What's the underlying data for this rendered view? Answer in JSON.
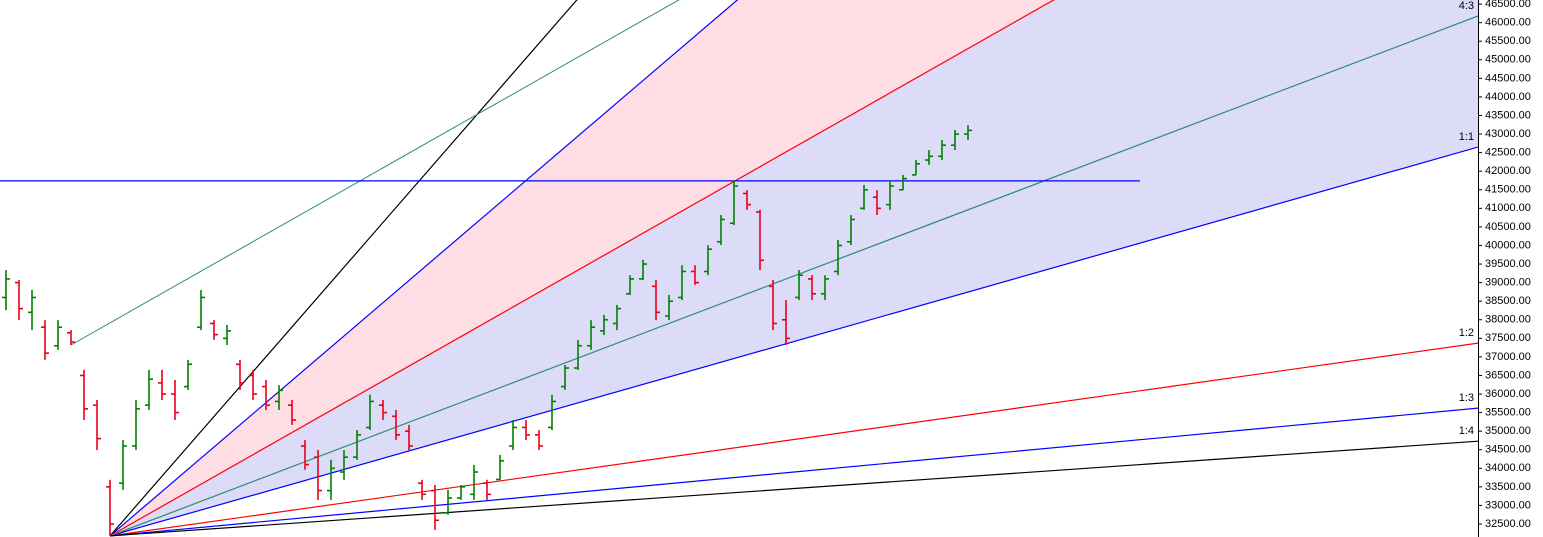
{
  "chart_data": {
    "type": "ohlc",
    "up_color": "#008000",
    "down_color": "#e8001c",
    "open": [
      38600,
      39000,
      38200,
      37800,
      37300,
      37650,
      36500,
      35700,
      33500,
      33600,
      34600,
      35700,
      36300,
      36000,
      36200,
      37800,
      37900,
      37500,
      36800,
      36500,
      36200,
      35800,
      35700,
      34600,
      34300,
      33400,
      33900,
      34300,
      35100,
      35700,
      35400,
      35000,
      33600,
      33400,
      32800,
      33200,
      33300,
      33600,
      33700,
      34600,
      35100,
      34900,
      35100,
      36200,
      36700,
      37300,
      37700,
      37900,
      38700,
      39100,
      38900,
      38100,
      38600,
      39300,
      39300,
      40100,
      40600,
      41400,
      40900,
      38900,
      38000,
      38600,
      39100,
      38700,
      39300,
      40100,
      41000,
      41300,
      41100,
      41500,
      41900,
      42300,
      42400,
      42700,
      43000
    ],
    "high": [
      39340,
      39070,
      38800,
      37990,
      37990,
      37720,
      36650,
      35840,
      33690,
      34760,
      35840,
      36650,
      36650,
      36380,
      36920,
      38800,
      37990,
      37860,
      36920,
      36650,
      36380,
      36240,
      35840,
      34760,
      34490,
      34230,
      34490,
      35030,
      35980,
      35840,
      35570,
      35170,
      33690,
      33550,
      33420,
      33550,
      34090,
      33690,
      34360,
      35300,
      35300,
      35030,
      35980,
      36780,
      37460,
      37990,
      38130,
      38400,
      39200,
      39610,
      39070,
      38670,
      39470,
      39470,
      40010,
      40820,
      41760,
      41490,
      40960,
      39070,
      38530,
      39340,
      39200,
      39200,
      40150,
      40820,
      41630,
      41490,
      41760,
      41900,
      42300,
      42570,
      42840,
      43110,
      43240
    ],
    "low": [
      38260,
      37990,
      37720,
      36920,
      37190,
      37320,
      35300,
      34490,
      32180,
      33420,
      34490,
      35570,
      35840,
      35300,
      36110,
      37720,
      37460,
      37320,
      36110,
      35840,
      35570,
      35570,
      35170,
      33960,
      33150,
      33150,
      33690,
      34230,
      35030,
      35300,
      34760,
      34490,
      33150,
      32340,
      32750,
      33150,
      33150,
      33150,
      33690,
      34490,
      34760,
      34490,
      35030,
      36110,
      36650,
      37190,
      37590,
      37720,
      38670,
      39070,
      37990,
      37990,
      38530,
      38940,
      39200,
      40010,
      40550,
      40960,
      39340,
      37720,
      37320,
      38530,
      38530,
      38530,
      39200,
      40010,
      40960,
      40820,
      40960,
      41490,
      41900,
      42170,
      42300,
      42570,
      42840
    ],
    "close": [
      39100,
      38300,
      38600,
      37100,
      37800,
      37400,
      35600,
      34800,
      32500,
      34600,
      35600,
      36400,
      36000,
      35500,
      36800,
      38600,
      37600,
      37700,
      36300,
      36000,
      35700,
      36100,
      35300,
      34100,
      33400,
      34000,
      34300,
      34900,
      35800,
      35500,
      34900,
      34600,
      33300,
      32600,
      33200,
      33500,
      33900,
      33300,
      34200,
      35100,
      34900,
      34600,
      35800,
      36700,
      37300,
      37800,
      38000,
      38300,
      39100,
      39500,
      38200,
      38500,
      39300,
      39000,
      39900,
      40700,
      41600,
      41100,
      39600,
      37900,
      37500,
      39200,
      38700,
      39100,
      40000,
      40700,
      41500,
      41000,
      41600,
      41800,
      42200,
      42400,
      42700,
      43000,
      43100
    ],
    "ylim": [
      32150,
      46610
    ],
    "yticks": [
      {
        "value": 32500,
        "label": "32500.00"
      },
      {
        "value": 33000,
        "label": "33000.00"
      },
      {
        "value": 33500,
        "label": "33500.00"
      },
      {
        "value": 34000,
        "label": "34000.00"
      },
      {
        "value": 34500,
        "label": "34500.00"
      },
      {
        "value": 35000,
        "label": "35000.00"
      },
      {
        "value": 35500,
        "label": "35500.00"
      },
      {
        "value": 36000,
        "label": "36000.00"
      },
      {
        "value": 36500,
        "label": "36500.00"
      },
      {
        "value": 37000,
        "label": "37000.00"
      },
      {
        "value": 37500,
        "label": "37500.00"
      },
      {
        "value": 38000,
        "label": "38000.00"
      },
      {
        "value": 38500,
        "label": "38500.00"
      },
      {
        "value": 39000,
        "label": "39000.00"
      },
      {
        "value": 39500,
        "label": "39500.00"
      },
      {
        "value": 40000,
        "label": "40000.00"
      },
      {
        "value": 40500,
        "label": "40500.00"
      },
      {
        "value": 41000,
        "label": "41000.00"
      },
      {
        "value": 41500,
        "label": "41500.00"
      },
      {
        "value": 42000,
        "label": "42000.00"
      },
      {
        "value": 42500,
        "label": "42500.00"
      },
      {
        "value": 43000,
        "label": "43000.00"
      },
      {
        "value": 43500,
        "label": "43500.00"
      },
      {
        "value": 44000,
        "label": "44000.00"
      },
      {
        "value": 44500,
        "label": "44500.00"
      },
      {
        "value": 45000,
        "label": "45000.00"
      },
      {
        "value": 45500,
        "label": "45500.00"
      },
      {
        "value": 46000,
        "label": "46000.00"
      },
      {
        "value": 46500,
        "label": "46500.00"
      }
    ],
    "fan": {
      "origin": 32180,
      "lines": [
        {
          "color": "#000000",
          "end": 74470
        },
        {
          "color": "#0000ff",
          "end": 63650,
          "fill": "#ffdde4"
        },
        {
          "color": "#ff0000",
          "end": 53100,
          "fill": "#dcdcf8"
        },
        {
          "label": "1:1",
          "color": "#0000ff",
          "end": 42650
        },
        {
          "label": "4:3",
          "color": "#2e8b70",
          "end": 46180
        },
        {
          "label": "1:2",
          "color": "#ff0000",
          "end": 37370
        },
        {
          "label": "1:3",
          "color": "#0000ff",
          "end": 35620
        },
        {
          "label": "1:4",
          "color": "#000000",
          "end": 34730
        }
      ]
    },
    "trendline": {
      "color": "#2e8b70",
      "start": 37320,
      "end": 58830
    },
    "hline": {
      "color": "#0000ff",
      "value": 41740
    }
  }
}
